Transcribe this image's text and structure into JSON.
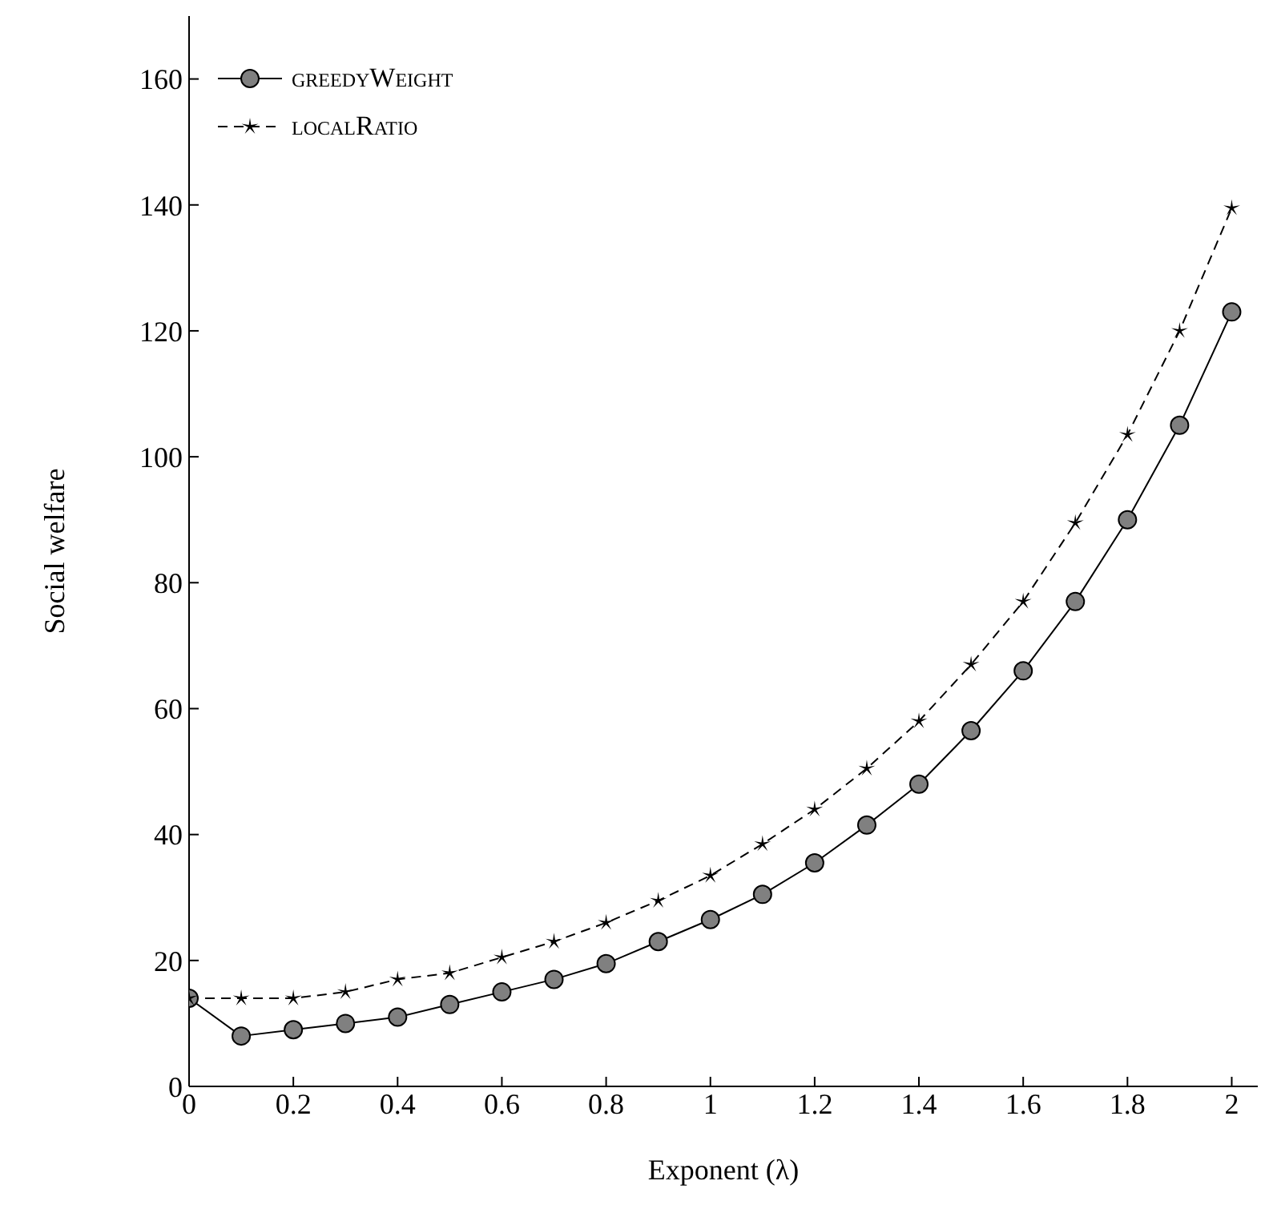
{
  "chart_data": {
    "type": "line",
    "xlabel": "Exponent (λ)",
    "ylabel": "Social welfare",
    "x": [
      0,
      0.1,
      0.2,
      0.3,
      0.4,
      0.5,
      0.6,
      0.7,
      0.8,
      0.9,
      1.0,
      1.1,
      1.2,
      1.3,
      1.4,
      1.5,
      1.6,
      1.7,
      1.8,
      1.9,
      2.0
    ],
    "series": [
      {
        "name": "greedyWeight",
        "color": "#000000",
        "marker": "circle",
        "line_style": "solid",
        "values": [
          14,
          8,
          9,
          10,
          11,
          13,
          15,
          17,
          19.5,
          23,
          26.5,
          30.5,
          35.5,
          41.5,
          48,
          56.5,
          66,
          77,
          90,
          105,
          123
        ]
      },
      {
        "name": "localRatio",
        "color": "#000000",
        "marker": "star",
        "line_style": "dashed",
        "values": [
          14,
          14,
          14,
          15,
          17,
          18,
          20.5,
          23,
          26,
          29.5,
          33.5,
          38.5,
          44,
          50.5,
          58,
          67,
          77,
          89.5,
          103.5,
          120,
          139.5
        ]
      }
    ],
    "xlim": [
      0,
      2.05
    ],
    "xticks": [
      0,
      0.2,
      0.4,
      0.6,
      0.8,
      1,
      1.2,
      1.4,
      1.6,
      1.8,
      2
    ],
    "ylim": [
      0,
      170
    ],
    "yticks": [
      0,
      20,
      40,
      60,
      80,
      100,
      120,
      140,
      160
    ],
    "grid": false,
    "legend": "top left"
  }
}
